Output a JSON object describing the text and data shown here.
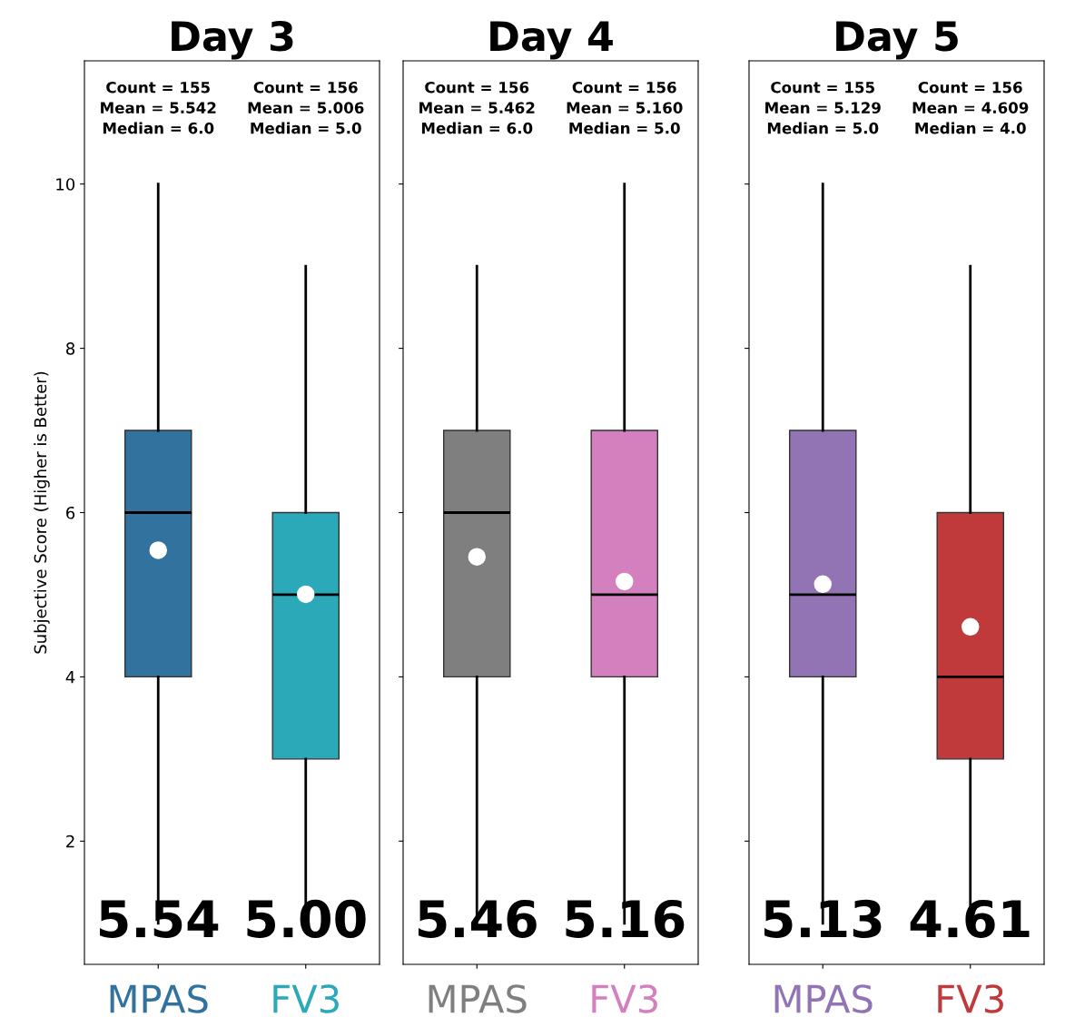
{
  "chart_data": [
    {
      "type": "box",
      "title": "Day 3",
      "ylabel": "Subjective Score (Higher is Better)",
      "categories": [
        "MPAS",
        "FV3"
      ],
      "colors": [
        "#31729f",
        "#2ba9b8"
      ],
      "ylim": [
        0.5,
        11.5
      ],
      "yticks": [
        2,
        4,
        6,
        8,
        10
      ],
      "grid": false,
      "boxes": [
        {
          "low": 1,
          "q1": 4,
          "median": 6,
          "q3": 7,
          "high": 10,
          "mean": 5.542
        },
        {
          "low": 1,
          "q1": 3,
          "median": 5,
          "q3": 6,
          "high": 9,
          "mean": 5.006
        }
      ],
      "annotations": [
        "Count = 155\nMean = 5.542\nMedian = 6.0",
        "Count = 156\nMean = 5.006\nMedian = 5.0",
        "5.54",
        "5.00"
      ]
    },
    {
      "type": "box",
      "title": "Day 4",
      "categories": [
        "MPAS",
        "FV3"
      ],
      "colors": [
        "#7f7f7f",
        "#d47fbe"
      ],
      "ylim": [
        0.5,
        11.5
      ],
      "yticks": [
        2,
        4,
        6,
        8,
        10
      ],
      "grid": false,
      "tick_labels": "x",
      "boxes": [
        {
          "low": 1,
          "q1": 4,
          "median": 6,
          "q3": 7,
          "high": 9,
          "mean": 5.462
        },
        {
          "low": 1,
          "q1": 4,
          "median": 5,
          "q3": 7,
          "high": 10,
          "mean": 5.16
        }
      ],
      "annotations": [
        "Count = 156\nMean = 5.462\nMedian = 6.0",
        "Count = 156\nMean = 5.160\nMedian = 5.0",
        "5.46",
        "5.16"
      ]
    },
    {
      "type": "box",
      "title": "Day 5",
      "categories": [
        "MPAS",
        "FV3"
      ],
      "colors": [
        "#9273b3",
        "#c03a3c"
      ],
      "ylim": [
        0.5,
        11.5
      ],
      "yticks": [
        2,
        4,
        6,
        8,
        10
      ],
      "grid": false,
      "tick_labels": "x",
      "boxes": [
        {
          "low": 1,
          "q1": 4,
          "median": 5,
          "q3": 7,
          "high": 10,
          "mean": 5.129
        },
        {
          "low": 1,
          "q1": 3,
          "median": 4,
          "q3": 6,
          "high": 9,
          "mean": 4.609
        }
      ],
      "annotations": [
        "Count = 155\nMean = 5.129\nMedian = 5.0",
        "Count = 156\nMean = 4.609\nMedian = 4.0",
        "5.13",
        "4.61"
      ]
    }
  ]
}
